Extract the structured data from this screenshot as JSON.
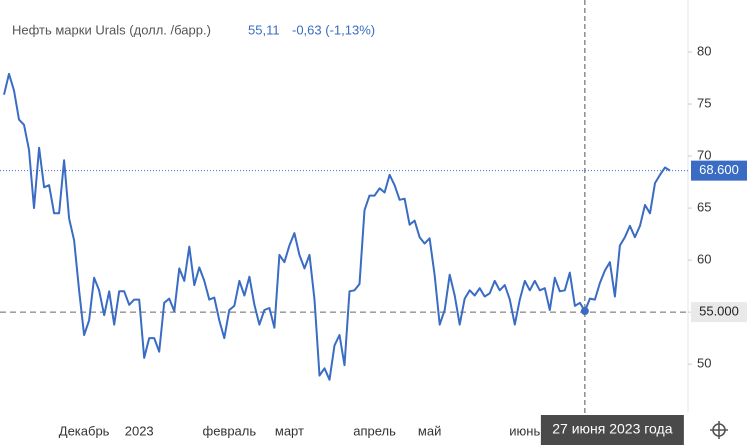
{
  "chart_data": {
    "type": "line",
    "title": "Нефть марки Urals (долл. /барр.)",
    "header_value": "55,11",
    "header_change": "-0,63 (-1,13%)",
    "color": "#3a6cc4",
    "categories": [
      null,
      null,
      null,
      null,
      null,
      null,
      null,
      null,
      null,
      null,
      null,
      null,
      null,
      null,
      null,
      null,
      "Декабрь",
      null,
      null,
      null,
      null,
      null,
      null,
      null,
      null,
      null,
      null,
      "2023",
      null,
      null,
      null,
      null,
      null,
      null,
      null,
      null,
      null,
      null,
      null,
      null,
      null,
      null,
      null,
      null,
      null,
      "февраль",
      null,
      null,
      null,
      null,
      null,
      null,
      null,
      null,
      null,
      null,
      null,
      "март",
      null,
      null,
      null,
      null,
      null,
      null,
      null,
      null,
      null,
      null,
      null,
      null,
      null,
      null,
      null,
      null,
      "апрель",
      null,
      null,
      null,
      null,
      null,
      null,
      null,
      null,
      null,
      null,
      "май",
      null,
      null,
      null,
      null,
      null,
      null,
      null,
      null,
      null,
      null,
      null,
      null,
      null,
      null,
      null,
      null,
      null,
      null,
      "июнь",
      null,
      null,
      null,
      null,
      null,
      null,
      null,
      null,
      null,
      null,
      null,
      "27 июня 2023 года",
      null,
      null,
      null,
      null,
      null,
      null,
      null,
      null,
      null,
      null,
      null,
      null,
      null,
      null,
      null,
      null,
      null
    ],
    "values": [
      75.9,
      77.9,
      76.3,
      73.5,
      73,
      70.6,
      65,
      70.8,
      67,
      67.2,
      64.5,
      64.5,
      69.6,
      64,
      61.9,
      57.1,
      52.8,
      54.2,
      58.3,
      57.1,
      54.7,
      57,
      53.8,
      57,
      57,
      55.7,
      56.2,
      56.2,
      50.6,
      52.5,
      52.5,
      51.2,
      55.9,
      56.3,
      55.1,
      59.2,
      58,
      61.3,
      57.6,
      59.3,
      58,
      56.2,
      56.4,
      54.2,
      52.5,
      55.2,
      55.6,
      58,
      56.6,
      58.4,
      55.7,
      53.8,
      55.2,
      55.4,
      53.5,
      60.5,
      59.8,
      61.4,
      62.6,
      60.5,
      59.2,
      60.5,
      56.2,
      48.9,
      49.6,
      48.5,
      51.8,
      52.8,
      49.9,
      57,
      57.1,
      57.7,
      64.8,
      66.2,
      66.2,
      66.9,
      66.5,
      68.2,
      67.2,
      65.8,
      65.9,
      63.4,
      63.8,
      62.2,
      61.6,
      62.1,
      58.6,
      53.8,
      55.2,
      58.6,
      56.6,
      53.8,
      56.3,
      57.1,
      56.6,
      57.3,
      56.5,
      56.8,
      58,
      57.1,
      57.6,
      56.2,
      53.8,
      56.2,
      58,
      57.1,
      58,
      57.1,
      57.3,
      55.2,
      58.3,
      57,
      57.1,
      58.8,
      55.6,
      55.9,
      55.1,
      56.3,
      56.2,
      57.8,
      59,
      59.8,
      56.5,
      61.4,
      62.2,
      63.3,
      62.2,
      63.3,
      65.3,
      64.5,
      67.4,
      68.2,
      68.9,
      68.6
    ],
    "ylim": [
      45.4,
      85
    ],
    "yticks": [
      50,
      55,
      60,
      65,
      70,
      75,
      80
    ],
    "last_value": {
      "value": 68.6,
      "label": "68.600"
    },
    "crosshair": {
      "value": 55,
      "label": "55.000"
    }
  }
}
